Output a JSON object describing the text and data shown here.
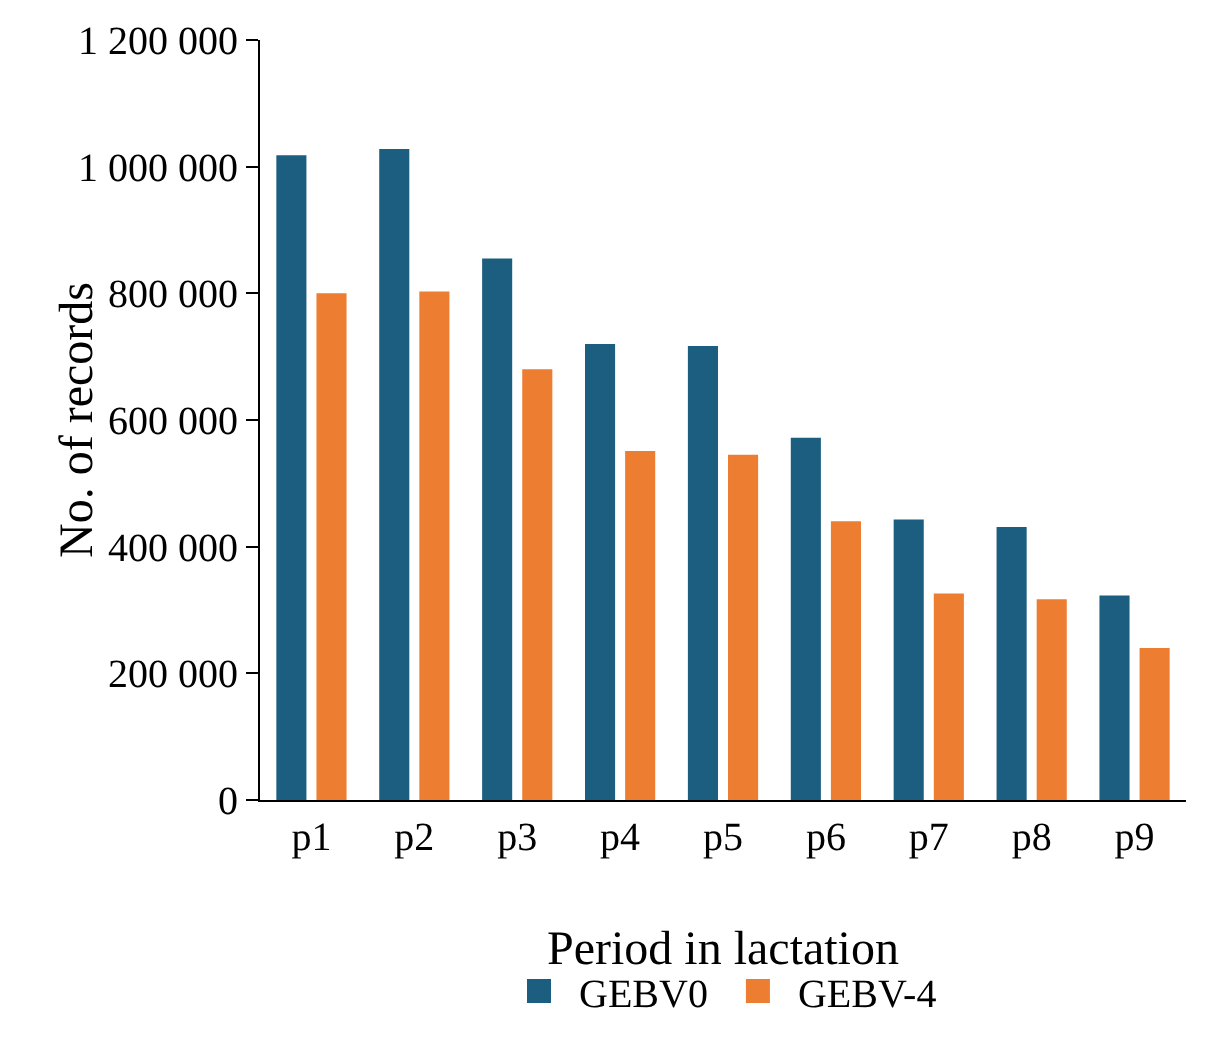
{
  "chart_data": {
    "type": "bar",
    "xlabel": "Period in lactation",
    "ylabel": "No. of records",
    "categories": [
      "p1",
      "p2",
      "p3",
      "p4",
      "p5",
      "p6",
      "p7",
      "p8",
      "p9"
    ],
    "series": [
      {
        "name": "GEBV0",
        "color": "#1b5e80",
        "values": [
          1018000,
          1028000,
          855000,
          720000,
          717000,
          572000,
          443000,
          431000,
          323000
        ]
      },
      {
        "name": "GEBV-4",
        "color": "#ed7d31",
        "values": [
          800000,
          803000,
          680000,
          551000,
          545000,
          440000,
          326000,
          317000,
          240000
        ]
      }
    ],
    "ylim": [
      0,
      1200000
    ],
    "yticks": [
      0,
      {
        "value": 200000,
        "label": "200 000"
      },
      {
        "value": 400000,
        "label": "400 000"
      },
      {
        "value": 600000,
        "label": "600 000"
      },
      {
        "value": 800000,
        "label": "800 000"
      },
      {
        "value": 1000000,
        "label": "1 000 000"
      },
      {
        "value": 1200000,
        "label": "1 200 000"
      }
    ],
    "grid": false,
    "legend": "bottom"
  }
}
